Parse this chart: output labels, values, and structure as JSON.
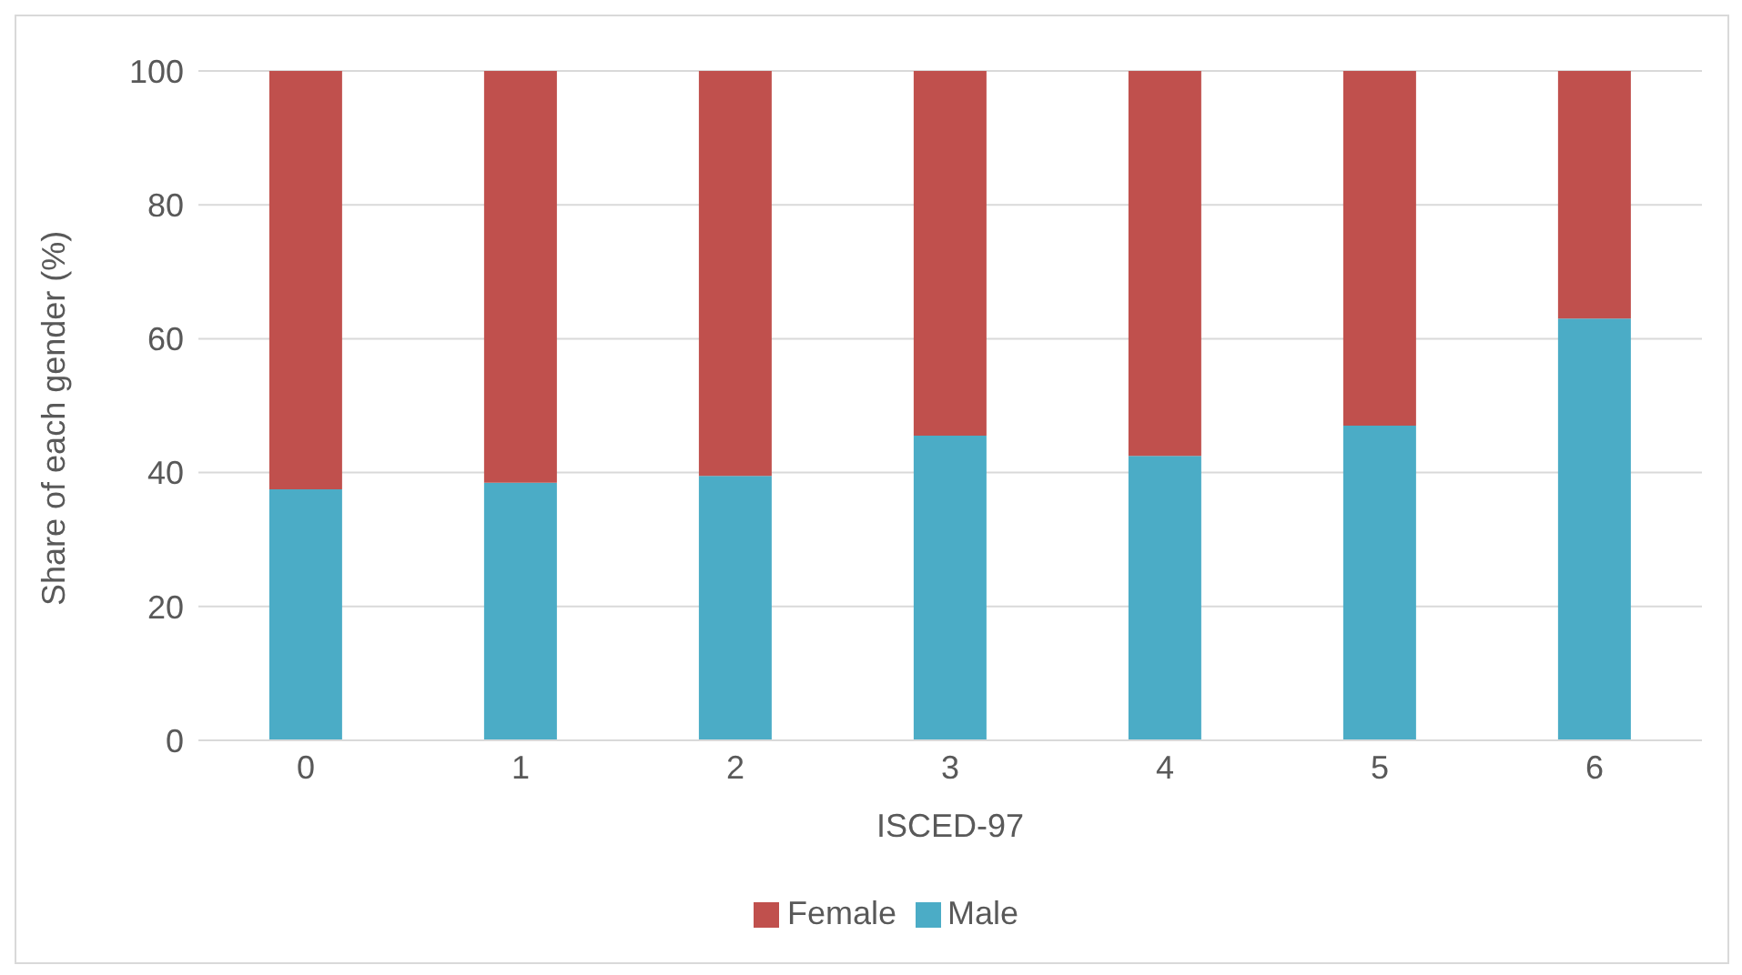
{
  "chart_data": {
    "type": "bar",
    "stacked": true,
    "xlabel": "ISCED-97",
    "ylabel": "Share of each gender (%)",
    "categories": [
      "0",
      "1",
      "2",
      "3",
      "4",
      "5",
      "6"
    ],
    "series": [
      {
        "name": "Male",
        "color": "#4bacc6",
        "values": [
          37.5,
          38.5,
          39.5,
          45.5,
          42.5,
          47,
          63
        ]
      },
      {
        "name": "Female",
        "color": "#c0504d",
        "values": [
          62.5,
          61.5,
          60.5,
          54.5,
          57.5,
          53,
          37
        ]
      }
    ],
    "ylim": [
      0,
      100
    ],
    "yticks": [
      0,
      20,
      40,
      60,
      80,
      100
    ],
    "grid": "y",
    "legend": "bottom"
  }
}
